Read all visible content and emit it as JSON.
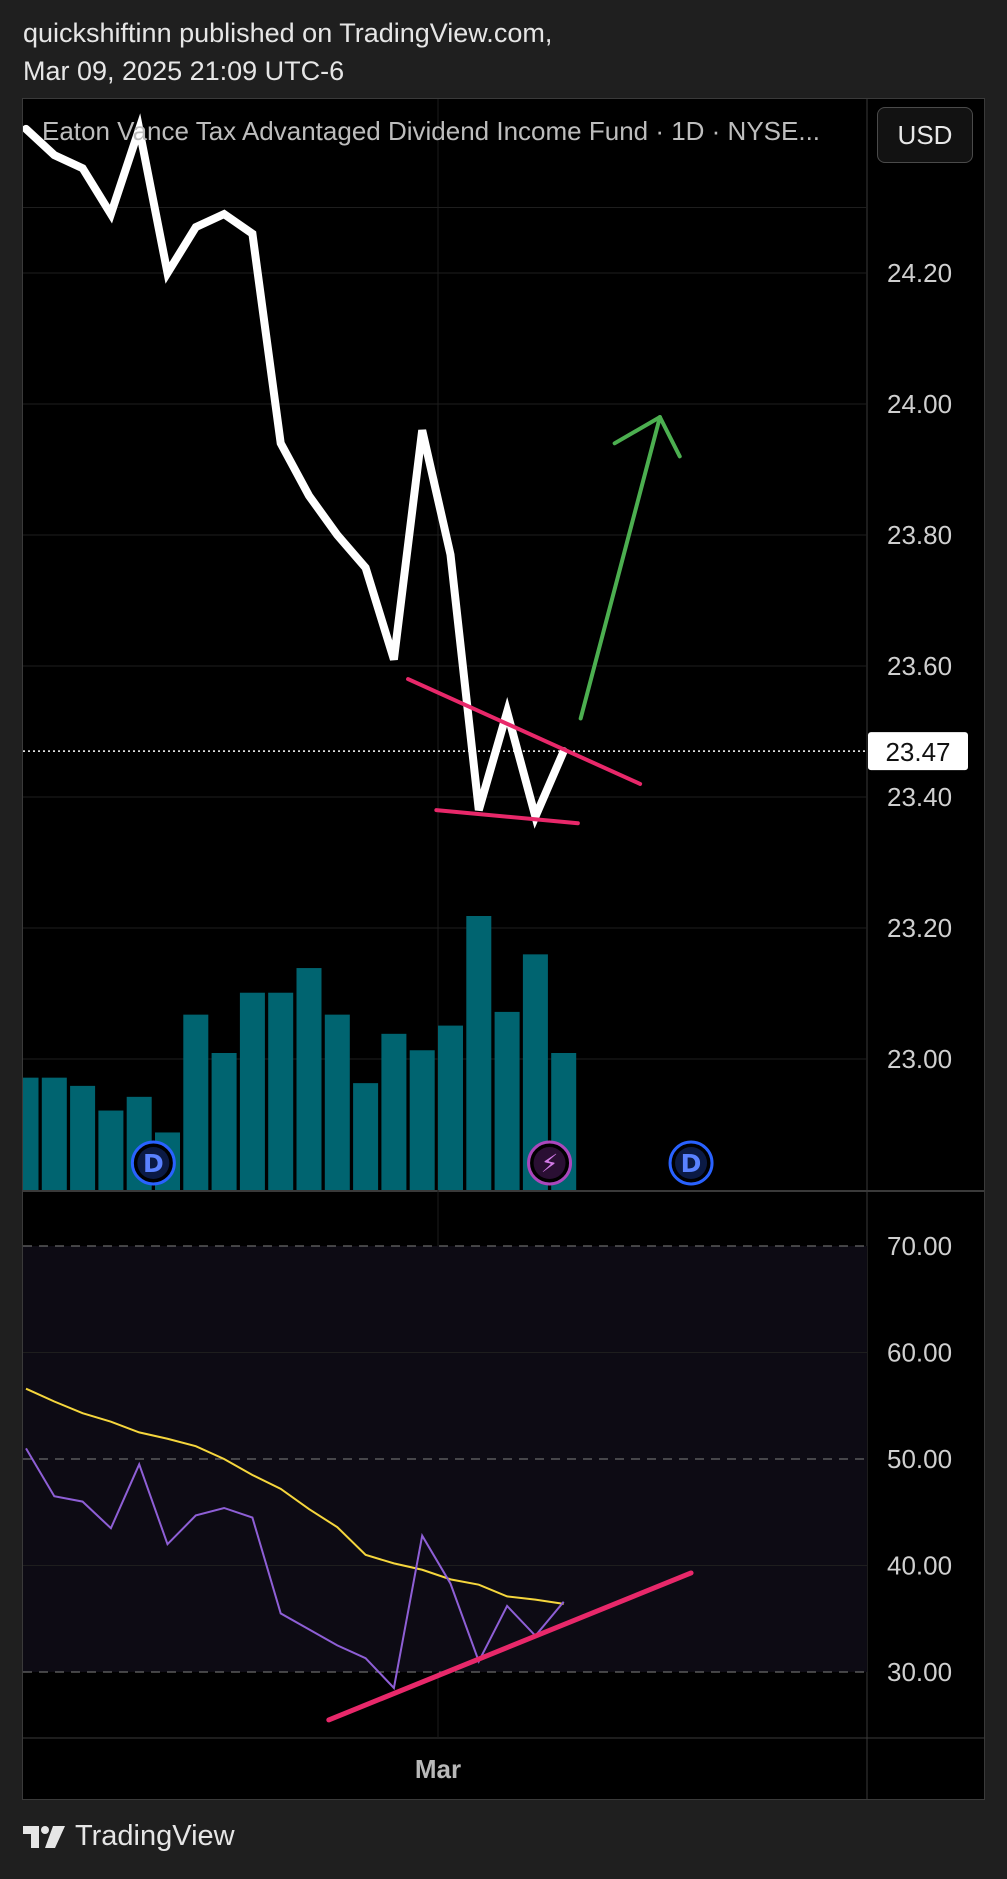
{
  "header": {
    "line1": "quickshiftinn published on TradingView.com,",
    "line2": "Mar 09, 2025 21:09 UTC-6"
  },
  "title": "Eaton Vance Tax Advantaged Dividend Income Fund · 1D · NYSE...",
  "currency": "USD",
  "brand": "TradingView",
  "colors": {
    "background": "#000000",
    "price_line": "#ffffff",
    "volume_bar": "#006470",
    "trendline": "#e8286a",
    "arrow": "#4caf50",
    "rsi": "#8e5fd6",
    "rsi_ma": "#f5d63d",
    "rsi_band": "#0d0b14",
    "dividend_marker": "#2962ff",
    "event_marker": "#ab47bc"
  },
  "chart_data": [
    {
      "type": "line",
      "name": "price",
      "x_label": "Mar",
      "ylim": [
        22.8,
        24.42
      ],
      "y_ticks": [
        23.0,
        23.2,
        23.4,
        23.6,
        23.8,
        24.0,
        24.2
      ],
      "y_tick_labels": [
        "23.00",
        "23.20",
        "23.40",
        "23.60",
        "23.80",
        "24.00",
        "24.20"
      ],
      "series": [
        {
          "values": [
            24.42,
            24.38,
            24.36,
            24.29,
            24.42,
            24.2,
            24.27,
            24.29,
            24.26,
            23.94,
            23.86,
            23.8,
            23.75,
            23.61,
            23.96,
            23.77,
            23.38,
            23.53,
            23.37,
            23.47
          ]
        }
      ],
      "last_price": 23.47,
      "last_price_label": "23.47",
      "volume": [
        0.41,
        0.41,
        0.38,
        0.29,
        0.34,
        0.21,
        0.64,
        0.5,
        0.72,
        0.72,
        0.81,
        0.64,
        0.39,
        0.57,
        0.51,
        0.6,
        1.0,
        0.65,
        0.86,
        0.5
      ],
      "markers": [
        {
          "label": "D",
          "kind": "dividend",
          "index": 4.5
        },
        {
          "label": "⚡",
          "kind": "event",
          "index": 18.5
        },
        {
          "label": "D",
          "kind": "dividend",
          "index": 23.5
        }
      ],
      "drawings": {
        "resistance_line": [
          [
            13.5,
            23.58
          ],
          [
            21.7,
            23.42
          ]
        ],
        "support_line": [
          [
            14.5,
            23.38
          ],
          [
            19.5,
            23.36
          ]
        ],
        "arrow": [
          [
            19.6,
            23.52
          ],
          [
            22.4,
            23.98
          ],
          [
            20.8,
            23.94
          ],
          [
            23.1,
            23.92
          ]
        ]
      }
    },
    {
      "type": "line",
      "name": "RSI",
      "ylim": [
        24,
        76
      ],
      "y_ticks": [
        30,
        40,
        50,
        60,
        70
      ],
      "y_tick_labels": [
        "30.00",
        "40.00",
        "50.00",
        "60.00",
        "70.00"
      ],
      "band": [
        30,
        70
      ],
      "series": [
        {
          "key": "rsi",
          "values": [
            51,
            46.5,
            46,
            43.5,
            49.5,
            42,
            44.7,
            45.4,
            44.5,
            35.5,
            34,
            32.5,
            31.3,
            28.5,
            42.8,
            38.3,
            31,
            36.2,
            33.4,
            36.6
          ]
        },
        {
          "key": "ma",
          "values": [
            56.6,
            55.4,
            54.3,
            53.5,
            52.5,
            51.9,
            51.2,
            50,
            48.5,
            47.2,
            45.3,
            43.6,
            41,
            40.2,
            39.6,
            38.7,
            38.2,
            37.1,
            36.8,
            36.4
          ]
        }
      ],
      "trendline": [
        [
          10.7,
          25.5
        ],
        [
          23.5,
          39.3
        ]
      ]
    }
  ]
}
